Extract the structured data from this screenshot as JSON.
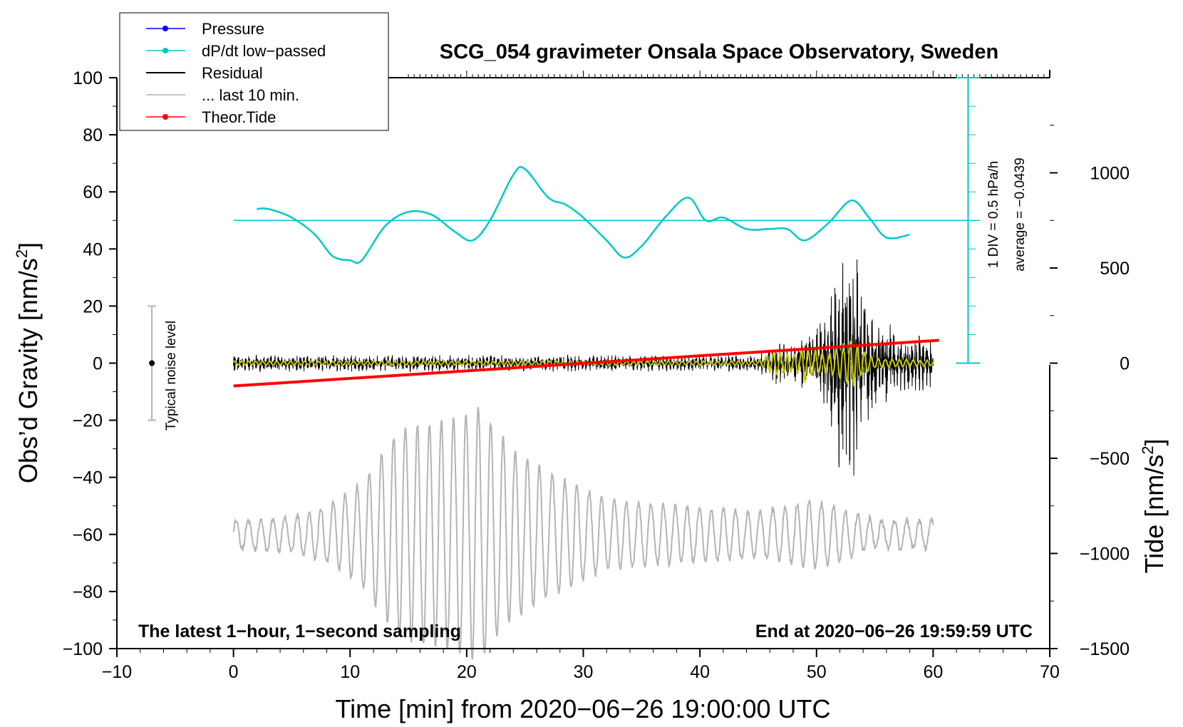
{
  "chart_data": {
    "type": "line",
    "title": "SCG_054 gravimeter Onsala Space Observatory, Sweden",
    "xlabel": "Time [min] from 2020−06−26 19:00:00 UTC",
    "ylabel": "Obs’d Gravity [nm/s²]",
    "ylabel_base": "Obs’d Gravity [nm/s",
    "ylabel_sup": "2",
    "ylabel_close": "]",
    "y2label": "Tide [nm/s²]",
    "y2label_base": "Tide [nm/s",
    "y2label_sup": "2",
    "y2label_close": "]",
    "xlim": [
      -10,
      70
    ],
    "ylim": [
      -100,
      100
    ],
    "y2lim": [
      -1500,
      1500
    ],
    "x_ticks": [
      -10,
      0,
      10,
      20,
      30,
      40,
      50,
      60,
      70
    ],
    "x_tick_labels": [
      "−10",
      "0",
      "10",
      "20",
      "30",
      "40",
      "50",
      "60",
      "70"
    ],
    "y_ticks": [
      100,
      80,
      60,
      40,
      20,
      0,
      -20,
      -40,
      -60,
      -80,
      -100
    ],
    "y_tick_labels": [
      "100",
      "80",
      "60",
      "40",
      "20",
      "0",
      "−20",
      "−40",
      "−60",
      "−80",
      "−100"
    ],
    "y2_ticks": [
      1000,
      500,
      0,
      -500,
      -1000,
      -1500
    ],
    "y2_tick_labels": [
      "1000",
      "500",
      "0",
      "−500",
      "−1000",
      "−1500"
    ],
    "legend": [
      {
        "label": "Pressure",
        "color": "#0000ff",
        "marker": true
      },
      {
        "label": "dP/dt low−passed",
        "color": "#00c8c8",
        "marker": true
      },
      {
        "label": "Residual",
        "color": "#000000",
        "marker": false
      },
      {
        "label": "... last 10 min.",
        "color": "#b4b4b4",
        "marker": false
      },
      {
        "label": "Theor.Tide",
        "color": "#ff0000",
        "marker": true
      }
    ],
    "series": [
      {
        "name": "dP/dt low-passed",
        "color": "#00c8c8",
        "baseline": 50,
        "x": [
          2,
          3,
          5,
          7,
          8.5,
          10,
          11,
          13,
          15,
          17,
          19,
          20.5,
          22,
          24,
          25,
          27,
          28.5,
          30,
          32,
          33.5,
          35,
          37,
          39,
          40.5,
          42,
          44,
          46,
          47.5,
          49,
          51,
          53,
          54.5,
          56,
          58
        ],
        "y": [
          54,
          54,
          51,
          45,
          37.5,
          36,
          36,
          48,
          53,
          52,
          46,
          43,
          50,
          66,
          68,
          58,
          55.5,
          51,
          43,
          37,
          41,
          51,
          58,
          50,
          51,
          47,
          47,
          47,
          43,
          49,
          57,
          51,
          44,
          45
        ]
      },
      {
        "name": "Residual",
        "color": "#000000",
        "x_start": 0,
        "x_end": 60,
        "envelope": {
          "x": [
            0,
            45,
            46.5,
            48,
            50,
            51,
            52,
            53,
            54,
            55,
            57,
            60
          ],
          "y": [
            3,
            3,
            9,
            7,
            13,
            24,
            40,
            46,
            30,
            18,
            12,
            9
          ]
        }
      },
      {
        "name": "Residual low-passed",
        "color": "#c8c800",
        "x_start": 0,
        "x_end": 60
      },
      {
        "name": "... last 10 min.",
        "color": "#b4b4b4",
        "x_start": 0,
        "x_end": 60,
        "offset": -60,
        "envelope": {
          "x": [
            0,
            5,
            8,
            11,
            14,
            18,
            21,
            24,
            27,
            32,
            38,
            45,
            50,
            55,
            60
          ],
          "y": [
            5,
            6,
            10,
            18,
            36,
            40,
            44,
            30,
            22,
            12,
            10,
            8,
            12,
            5,
            5
          ]
        }
      },
      {
        "name": "Theor.Tide",
        "color": "#ff0000",
        "axis": "y2",
        "x": [
          0,
          60.5
        ],
        "y": [
          -120,
          120
        ]
      }
    ],
    "pressure_scale": {
      "label_1": "1 DIV = 0.5 hPa/h",
      "label_2": "average = −0.0439",
      "x": 63,
      "y_range": [
        0,
        100
      ],
      "divisions": 10
    },
    "noise_bar": {
      "label": "Typical noise level",
      "x": -7,
      "y_center": 0,
      "y_range": [
        -20,
        20
      ]
    },
    "annotation_left": "The latest 1−hour, 1−second sampling",
    "annotation_right": "End at 2020−06−26 19:59:59 UTC"
  }
}
